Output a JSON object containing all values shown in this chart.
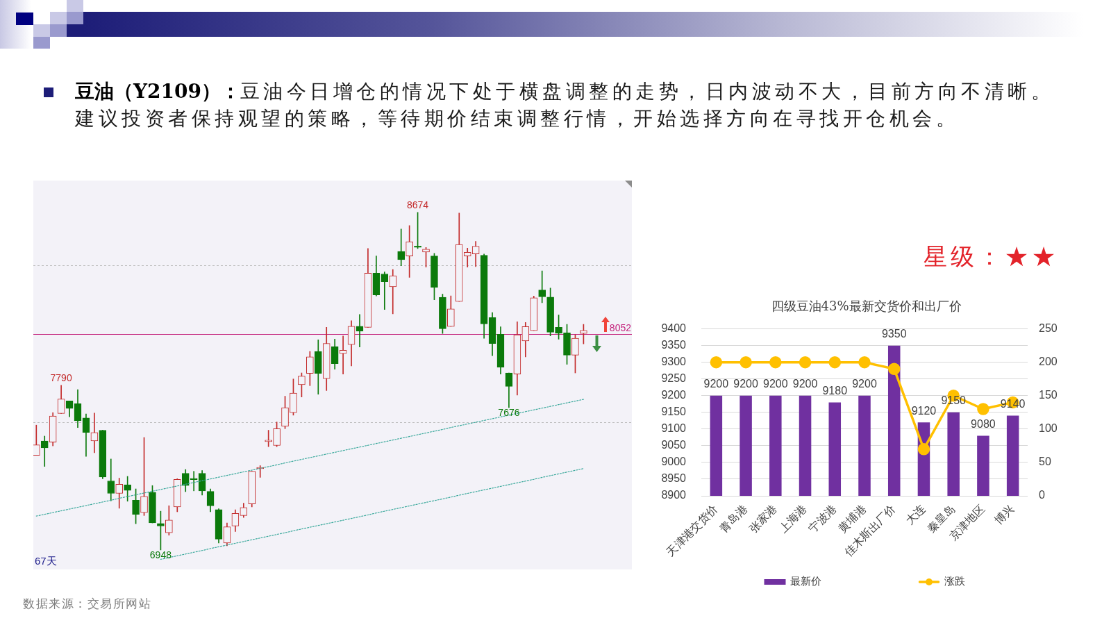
{
  "chart_data": [
    {
      "type": "candlestick",
      "categories": [
        null,
        null,
        null,
        null,
        null,
        null,
        null,
        null,
        null,
        null,
        null,
        null,
        null,
        null,
        null,
        null,
        null,
        null,
        null,
        null,
        null,
        null,
        null,
        null,
        null,
        null,
        null,
        null,
        null,
        null,
        null,
        null,
        null,
        null,
        null,
        null,
        null,
        null,
        null,
        null,
        null,
        null,
        null,
        null,
        null,
        null,
        null,
        null,
        null,
        null,
        null,
        null,
        null,
        null,
        null,
        null,
        null,
        null,
        null,
        null,
        null,
        null,
        null,
        null,
        null,
        null,
        null
      ],
      "ohlc": [
        [
          7432,
          7586,
          7432,
          7485
        ],
        [
          7505,
          7530,
          7375,
          7470
        ],
        [
          7499,
          7650,
          7480,
          7633
        ],
        [
          7646,
          7790,
          7646,
          7720
        ],
        [
          7710,
          7710,
          7629,
          7671
        ],
        [
          7696,
          7768,
          7574,
          7608
        ],
        [
          7623,
          7643,
          7426,
          7549
        ],
        [
          7505,
          7648,
          7445,
          7548
        ],
        [
          7560,
          7560,
          7312,
          7321
        ],
        [
          7301,
          7413,
          7199,
          7237
        ],
        [
          7237,
          7315,
          7161,
          7284
        ],
        [
          7281,
          7324,
          7197,
          7252
        ],
        [
          7202,
          7260,
          7082,
          7130
        ],
        [
          7139,
          7523,
          7124,
          7222
        ],
        [
          7243,
          7277,
          7086,
          7086
        ],
        [
          7083,
          7146,
          6948,
          7070
        ],
        [
          7036,
          7174,
          7023,
          7101
        ],
        [
          7168,
          7312,
          7143,
          7309
        ],
        [
          7340,
          7359,
          7246,
          7277
        ],
        [
          7311,
          7350,
          7250,
          7307
        ],
        [
          7340,
          7354,
          7228,
          7250
        ],
        [
          7247,
          7260,
          7143,
          7173
        ],
        [
          7154,
          7159,
          6983,
          7003
        ],
        [
          6983,
          7086,
          6969,
          7066
        ],
        [
          7070,
          7153,
          7042,
          7135
        ],
        [
          7124,
          7187,
          7114,
          7165
        ],
        [
          7183,
          7350,
          7168,
          7350
        ],
        [
          7363,
          7379,
          7319,
          7367
        ],
        [
          7502,
          7560,
          7476,
          7506
        ],
        [
          7482,
          7602,
          7476,
          7568
        ],
        [
          7580,
          7734,
          7568,
          7675
        ],
        [
          7650,
          7822,
          7637,
          7750
        ],
        [
          7793,
          7853,
          7730,
          7837
        ],
        [
          7851,
          7963,
          7788,
          7935
        ],
        [
          7963,
          8022,
          7744,
          7851
        ],
        [
          7824,
          8086,
          7763,
          8004
        ],
        [
          7988,
          8026,
          7872,
          7900
        ],
        [
          7952,
          8042,
          7847,
          7969
        ],
        [
          7998,
          8120,
          7889,
          8092
        ],
        [
          8092,
          8152,
          7986,
          8066
        ],
        [
          8086,
          8489,
          8086,
          8363
        ],
        [
          8363,
          8451,
          8247,
          8252
        ],
        [
          8359,
          8369,
          8177,
          8319
        ],
        [
          8294,
          8382,
          8155,
          8350
        ],
        [
          8474,
          8589,
          8401,
          8432
        ],
        [
          8451,
          8606,
          8342,
          8524
        ],
        [
          8499,
          8674,
          8489,
          8495
        ],
        [
          8471,
          8495,
          8394,
          8486
        ],
        [
          8451,
          8464,
          8227,
          8290
        ],
        [
          8240,
          8256,
          8055,
          8079
        ],
        [
          8090,
          8247,
          8090,
          8180
        ],
        [
          8218,
          8670,
          8218,
          8510
        ],
        [
          8451,
          8491,
          8394,
          8470
        ],
        [
          8461,
          8526,
          8397,
          8501
        ],
        [
          8455,
          8461,
          8030,
          8104
        ],
        [
          8136,
          8162,
          7941,
          8003
        ],
        [
          8051,
          8089,
          7847,
          7882
        ],
        [
          7853,
          7853,
          7676,
          7784
        ],
        [
          7847,
          8115,
          7740,
          8048
        ],
        [
          8017,
          8111,
          7935,
          8090
        ],
        [
          8069,
          8246,
          8069,
          8237
        ],
        [
          8277,
          8375,
          8212,
          8242
        ],
        [
          8241,
          8287,
          8042,
          8061
        ],
        [
          8086,
          8149,
          8026,
          8056
        ],
        [
          8058,
          8101,
          7897,
          7944
        ],
        [
          7944,
          8048,
          7853,
          8030
        ],
        [
          8055,
          8101,
          8002,
          8070
        ]
      ],
      "colors": [
        "#c32a2a",
        "#0b7a0b",
        "#c32a2a",
        "#c32a2a",
        "#0b7a0b",
        "#0b7a0b",
        "#0b7a0b",
        "#c32a2a",
        "#0b7a0b",
        "#0b7a0b",
        "#c32a2a",
        "#0b7a0b",
        "#0b7a0b",
        "#c32a2a",
        "#0b7a0b",
        "#0b7a0b",
        "#c32a2a",
        "#c32a2a",
        "#0b7a0b",
        "#0b7a0b",
        "#0b7a0b",
        "#0b7a0b",
        "#0b7a0b",
        "#c32a2a",
        "#c32a2a",
        "#c32a2a",
        "#c32a2a",
        "#c32a2a",
        "#c32a2a",
        "#c32a2a",
        "#c32a2a",
        "#c32a2a",
        "#c32a2a",
        "#c32a2a",
        "#0b7a0b",
        "#c32a2a",
        "#0b7a0b",
        "#c32a2a",
        "#c32a2a",
        "#0b7a0b",
        "#c32a2a",
        "#0b7a0b",
        "#0b7a0b",
        "#c32a2a",
        "#0b7a0b",
        "#c32a2a",
        "#0b7a0b",
        "#c32a2a",
        "#0b7a0b",
        "#0b7a0b",
        "#c32a2a",
        "#c32a2a",
        "#c32a2a",
        "#c32a2a",
        "#0b7a0b",
        "#0b7a0b",
        "#0b7a0b",
        "#0b7a0b",
        "#c32a2a",
        "#c32a2a",
        "#c32a2a",
        "#0b7a0b",
        "#0b7a0b",
        "#0b7a0b",
        "#0b7a0b",
        "#c32a2a",
        "#c32a2a"
      ],
      "series": [
        {
          "type": "line",
          "color": "#3ba99c",
          "line_style": "dotted",
          "marker": "none",
          "values": [
            7121,
            7130,
            7139,
            7148,
            7157,
            7166,
            7175,
            7184,
            7193,
            7202,
            7212,
            7221,
            7230,
            7239,
            7248,
            7257,
            7266,
            7275,
            7284,
            7293,
            7302,
            7311,
            7320,
            7329,
            7338,
            7347,
            7356,
            7365,
            7374,
            7383,
            7393,
            7402,
            7411,
            7420,
            7429,
            7438,
            7447,
            7456,
            7465,
            7474,
            7483,
            7492,
            7501,
            7510,
            7519,
            7528,
            7537,
            7546,
            7555,
            7564,
            7574,
            7583,
            7592,
            7601,
            7610,
            7619,
            7628,
            7637,
            7646,
            7655,
            7664,
            7673,
            7682,
            7691,
            7700,
            7709,
            7718
          ]
        },
        {
          "type": "line",
          "color": "#3ba99c",
          "line_style": "dotted",
          "marker": "none",
          "values": [
            null,
            null,
            null,
            null,
            null,
            null,
            null,
            null,
            null,
            null,
            null,
            null,
            null,
            null,
            null,
            6900,
            6909,
            6918,
            6927,
            6936,
            6945,
            6955,
            6964,
            6973,
            6982,
            6991,
            7000,
            7009,
            7018,
            7027,
            7036,
            7046,
            7055,
            7064,
            7073,
            7082,
            7091,
            7100,
            7109,
            7118,
            7127,
            7137,
            7146,
            7155,
            7164,
            7173,
            7182,
            7191,
            7200,
            7209,
            7218,
            7228,
            7237,
            7246,
            7255,
            7264,
            7273,
            7282,
            7291,
            7300,
            7309,
            7319,
            7328,
            7337,
            7346,
            7355,
            7364
          ]
        }
      ],
      "grid": "y",
      "yticks": [
        {
          "value": 7600,
          "label": null
        },
        {
          "value": 8400,
          "label": null
        }
      ],
      "ref_lines": [
        {
          "axis": "y",
          "value": 8052,
          "label": "8052",
          "color": "#c4237c"
        }
      ],
      "annotations": [
        "豆油（Y2109）：",
        "豆油今日增仓的情况下处于横盘调整的走势，日内波动不大，目前方向不清晰。",
        "建议投资者保持观望的策略，等待期价结束调整行情，开始选择方向在寻找开仓机会。",
        "数据来源：交易所网站",
        "67天",
        {
          "text": "8674",
          "y": 8674
        },
        {
          "text": "7790",
          "y": 7790
        },
        {
          "text": "7676",
          "y": 7676
        },
        {
          "text": "6948",
          "y": 6948
        }
      ]
    },
    {
      "type": "bar",
      "title": "四级豆油43%最新交货价和出厂价",
      "categories": [
        "天津港交货价",
        "青岛港",
        "张家港",
        "上海港",
        "宁波港",
        "黄埔港",
        "佳木斯出厂价",
        "大连",
        "秦皇岛",
        "京津地区",
        "博兴"
      ],
      "series": [
        {
          "type": "bar",
          "name": "最新价",
          "color": "#7030a0",
          "values": [
            9200,
            9200,
            9200,
            9200,
            9180,
            9200,
            9350,
            9120,
            9150,
            9080,
            9140
          ],
          "value_labels": [
            "9200",
            "9200",
            "9200",
            "9200",
            "9180",
            "9200",
            "9350",
            "9120",
            "9150",
            "9080",
            "9140"
          ]
        },
        {
          "type": "line",
          "name": "涨跌",
          "color": "#ffc000",
          "axis": "y2",
          "marker": "circle",
          "values": [
            200,
            200,
            200,
            200,
            200,
            200,
            190,
            70,
            150,
            130,
            140
          ]
        }
      ],
      "ylim": [
        8900,
        9400
      ],
      "yticks": [
        8900,
        8950,
        9000,
        9050,
        9100,
        9150,
        9200,
        9250,
        9300,
        9350,
        9400
      ],
      "y2lim": [
        0,
        250
      ],
      "y2ticks": [
        0,
        50,
        100,
        150,
        200,
        250
      ],
      "grid": "y",
      "legend": "bottom",
      "annotations": [
        "星级：★★"
      ]
    }
  ]
}
